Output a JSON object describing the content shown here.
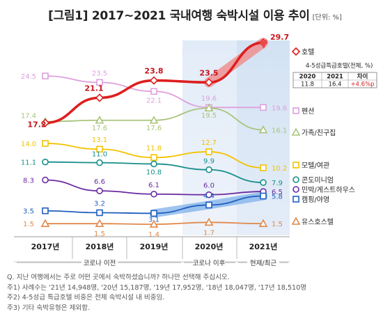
{
  "title": "[그림1] 2017~2021 국내여행 숙박시설 이용 추이",
  "unit": "[단위: %]",
  "chart_data": {
    "type": "line",
    "x": [
      "2017년",
      "2018년",
      "2019년",
      "2020년",
      "2021년"
    ],
    "ylim": [
      0,
      32
    ],
    "grid": false,
    "legend": "right",
    "series": [
      {
        "name": "호텔",
        "values": [
          17.2,
          21.1,
          23.8,
          23.5,
          29.7
        ],
        "color": "#dd1f1f",
        "marker": "diamond"
      },
      {
        "name": "펜션",
        "values": [
          24.5,
          23.5,
          22.1,
          19.6,
          19.6
        ],
        "color": "#dda0dd",
        "marker": "square"
      },
      {
        "name": "가족/친구집",
        "values": [
          17.4,
          17.6,
          17.6,
          19.5,
          16.1
        ],
        "color": "#a8c47c",
        "marker": "triangle"
      },
      {
        "name": "모텔/여관",
        "values": [
          14.0,
          13.1,
          11.8,
          12.7,
          10.2
        ],
        "color": "#f2c300",
        "marker": "square"
      },
      {
        "name": "콘도미니엄",
        "values": [
          11.1,
          11.0,
          10.8,
          9.9,
          7.9
        ],
        "color": "#168f8a",
        "marker": "circle"
      },
      {
        "name": "민박/게스트하우스",
        "values": [
          8.3,
          6.6,
          6.1,
          6.0,
          6.5
        ],
        "color": "#6b2aa0",
        "marker": "circle"
      },
      {
        "name": "캠핑/야영",
        "values": [
          3.5,
          3.2,
          3.1,
          4.4,
          5.8
        ],
        "color": "#1f5fbf",
        "marker": "square"
      },
      {
        "name": "유스호스텔",
        "values": [
          1.5,
          1.5,
          1.4,
          1.7,
          1.5
        ],
        "color": "#e0884a",
        "marker": "triangle"
      }
    ],
    "periods": [
      "코로나 이전",
      "코로나 이후",
      "현재/최근"
    ],
    "inset_table": {
      "caption": "4-5성급특급호텔(전체, %)",
      "headers": [
        "2020",
        "2021",
        "차이"
      ],
      "row": [
        "11.8",
        "16.4",
        "+4.6%p"
      ]
    }
  },
  "notes": [
    "Q. 지난 여행에서는 주로 어떤 곳에서 숙박하셨습니까? 하나만 선택해 주십시오.",
    "주1) 사례수는 '21년 14,948명, '20년 15,187명, '19년 17,952명, '18년 18,047명, '17년 18,510명",
    "주2) 4-5성급 특급호텔 비중은 전체 숙박시설 내 비중임.",
    "주3) 기타 숙박유형은 제외함."
  ]
}
